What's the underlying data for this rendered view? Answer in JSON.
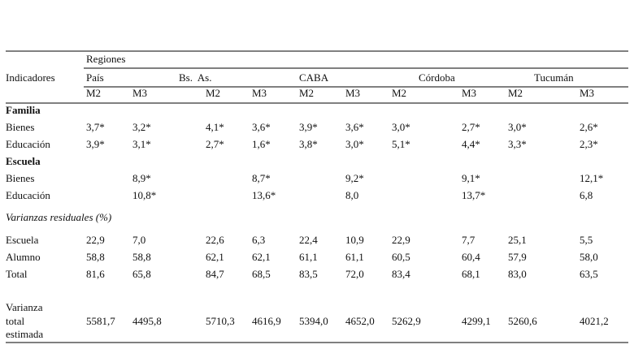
{
  "table": {
    "header": {
      "group": "Regiones",
      "corner": "Indicadores",
      "regions": [
        "País",
        "Bs.  As.",
        "CABA",
        "Córdoba",
        "Tucumán"
      ],
      "models": [
        "M2",
        "M3",
        "M2",
        "M3",
        "M2",
        "M3",
        "M2",
        "M3",
        "M2",
        "M3"
      ]
    },
    "sections": [
      {
        "title": "Familia",
        "rows": [
          {
            "label": "Bienes",
            "cells": [
              "3,7*",
              "3,2*",
              "4,1*",
              "3,6*",
              "3,9*",
              "3,6*",
              "3,0*",
              "2,7*",
              "3,0*",
              "2,6*"
            ]
          },
          {
            "label": "Educación",
            "cells": [
              "3,9*",
              "3,1*",
              "2,7*",
              "1,6*",
              "3,8*",
              "3,0*",
              "5,1*",
              "4,4*",
              "3,3*",
              "2,3*"
            ]
          }
        ]
      },
      {
        "title": "Escuela",
        "rows": [
          {
            "label": "Bienes",
            "cells": [
              null,
              "8,9*",
              null,
              "8,7*",
              null,
              "9,2*",
              null,
              "9,1*",
              null,
              "12,1*"
            ]
          },
          {
            "label": "Educación",
            "cells": [
              null,
              "10,8*",
              null,
              "13,6*",
              null,
              "8,0",
              null,
              "13,7*",
              null,
              "6,8"
            ]
          }
        ]
      },
      {
        "title": "Varianzas residuales (%)",
        "rows": [
          {
            "label": "Escuela",
            "cells": [
              "22,9",
              "7,0",
              "22,6",
              "6,3",
              "22,4",
              "10,9",
              "22,9",
              "7,7",
              "25,1",
              "5,5"
            ]
          },
          {
            "label": "Alumno",
            "cells": [
              "58,8",
              "58,8",
              "62,1",
              "62,1",
              "61,1",
              "61,1",
              "60,5",
              "60,4",
              "57,9",
              "58,0"
            ]
          },
          {
            "label": "Total",
            "cells": [
              "81,6",
              "65,8",
              "84,7",
              "68,5",
              "83,5",
              "72,0",
              "83,4",
              "68,1",
              "83,0",
              "63,5"
            ]
          }
        ]
      }
    ],
    "total_row": {
      "label": [
        "Varianza",
        "total",
        "estimada"
      ],
      "cells": [
        "5581,7",
        "4495,8",
        "5710,3",
        "4616,9",
        "5394,0",
        "4652,0",
        "5262,9",
        "4299,1",
        "5260,6",
        "4021,2"
      ]
    }
  }
}
